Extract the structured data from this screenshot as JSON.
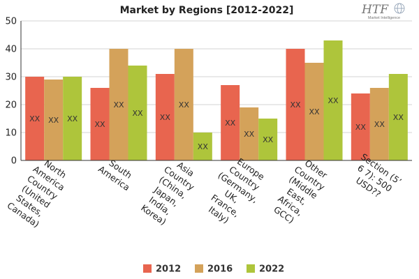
{
  "chart_data": {
    "type": "bar",
    "title": "Market by Regions [2012-2022]",
    "categories": [
      [
        "North",
        "America",
        "Country",
        "(United",
        "States,",
        "Canada)"
      ],
      [
        "South",
        "America"
      ],
      [
        "Asia",
        "Country",
        "(China,",
        "Japan,",
        "India,",
        "Korea)"
      ],
      [
        "Europe",
        "Country",
        "(Germany,",
        "UK,",
        "France,",
        "Italy)"
      ],
      [
        "Other",
        "Country",
        "(Middle",
        "East,",
        "Africa,",
        "GCC)"
      ],
      [
        "Section (5’",
        "6 7): 500",
        "USD??"
      ]
    ],
    "series": [
      {
        "name": "2012",
        "color": "#e8654f",
        "values": [
          30,
          26,
          31,
          27,
          40,
          24
        ]
      },
      {
        "name": "2016",
        "color": "#d4a25a",
        "values": [
          29,
          40,
          40,
          19,
          35,
          26
        ]
      },
      {
        "name": "2022",
        "color": "#aec53b",
        "values": [
          30,
          34,
          10,
          15,
          43,
          31
        ]
      }
    ],
    "data_label": "XX",
    "yticks": [
      0,
      10,
      20,
      30,
      40,
      50
    ],
    "ylim": [
      0,
      50
    ],
    "grid": true,
    "legend_position": "bottom"
  },
  "logo": {
    "main": "HTF",
    "sub": "Market Intelligence"
  }
}
